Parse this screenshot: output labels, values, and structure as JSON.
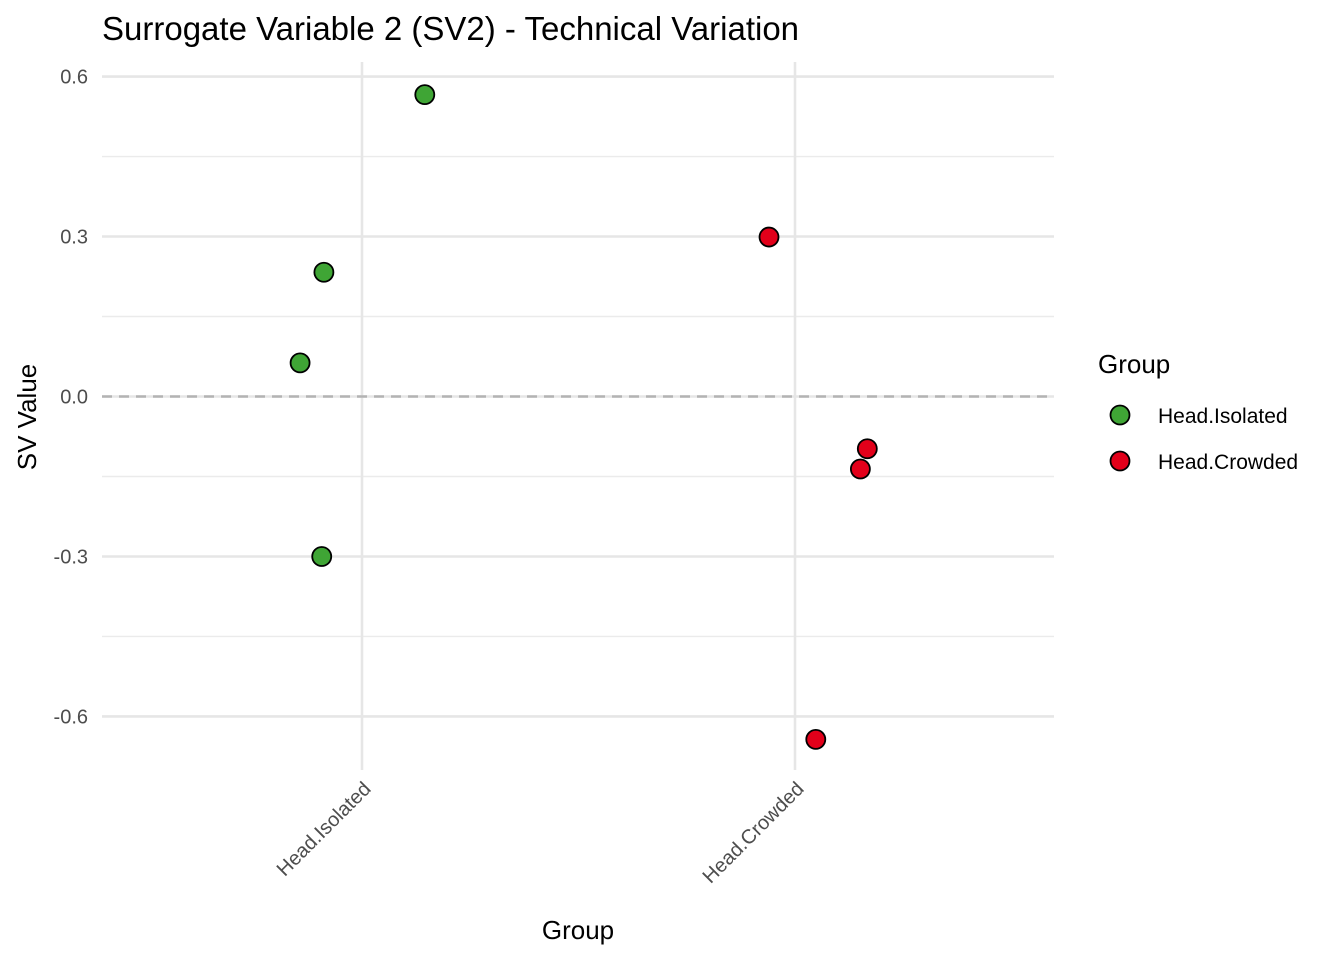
{
  "chart_data": {
    "type": "scatter",
    "title": "Surrogate Variable 2 (SV2) - Technical Variation",
    "xlabel": "Group",
    "ylabel": "SV Value",
    "categories": [
      "Head.Isolated",
      "Head.Crowded"
    ],
    "ylim": [
      -0.73,
      0.64
    ],
    "y_ticks": [
      0.6,
      0.3,
      0.0,
      -0.3,
      -0.6
    ],
    "y_tick_labels": [
      "0.6",
      "0.3",
      "0.0",
      "-0.3",
      "-0.6"
    ],
    "reference_line": {
      "y": 0.0,
      "style": "dashed"
    },
    "legend": {
      "title": "Group",
      "placement": "right",
      "entries": [
        {
          "label": "Head.Isolated",
          "color": "#3fa535"
        },
        {
          "label": "Head.Crowded",
          "color": "#e2001a"
        }
      ]
    },
    "series": [
      {
        "name": "Head.Isolated",
        "color": "#3fa535",
        "points": [
          {
            "category": "Head.Isolated",
            "jitter": 0.145,
            "y": 0.566
          },
          {
            "category": "Head.Isolated",
            "jitter": -0.088,
            "y": 0.233
          },
          {
            "category": "Head.Isolated",
            "jitter": -0.143,
            "y": 0.063
          },
          {
            "category": "Head.Isolated",
            "jitter": -0.093,
            "y": -0.3
          }
        ]
      },
      {
        "name": "Head.Crowded",
        "color": "#e2001a",
        "points": [
          {
            "category": "Head.Crowded",
            "jitter": -0.06,
            "y": 0.299
          },
          {
            "category": "Head.Crowded",
            "jitter": 0.167,
            "y": -0.098
          },
          {
            "category": "Head.Crowded",
            "jitter": 0.151,
            "y": -0.136
          },
          {
            "category": "Head.Crowded",
            "jitter": 0.048,
            "y": -0.643
          }
        ]
      }
    ]
  }
}
